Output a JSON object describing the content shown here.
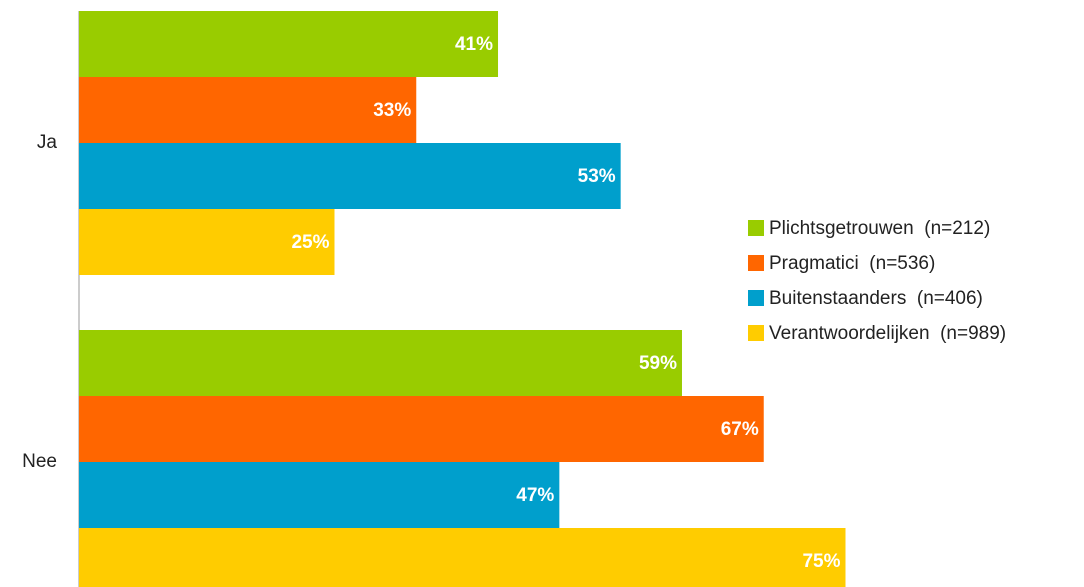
{
  "chart_data": {
    "type": "bar",
    "orientation": "horizontal",
    "categories": [
      "Ja",
      "Nee"
    ],
    "series": [
      {
        "name": "Plichtsgetrouwen  (n=212)",
        "color": "#99cc00",
        "values": [
          41,
          59
        ],
        "value_labels": [
          "41%",
          "59%"
        ]
      },
      {
        "name": "Pragmatici  (n=536)",
        "color": "#ff6600",
        "values": [
          33,
          67
        ],
        "value_labels": [
          "33%",
          "67%"
        ]
      },
      {
        "name": "Buitenstaanders  (n=406)",
        "color": "#009fcc",
        "values": [
          53,
          47
        ],
        "value_labels": [
          "53%",
          "47%"
        ]
      },
      {
        "name": "Verantwoordelijken  (n=989)",
        "color": "#ffcc00",
        "values": [
          25,
          75
        ],
        "value_labels": [
          "25%",
          "75%"
        ]
      }
    ],
    "legend": "right"
  }
}
